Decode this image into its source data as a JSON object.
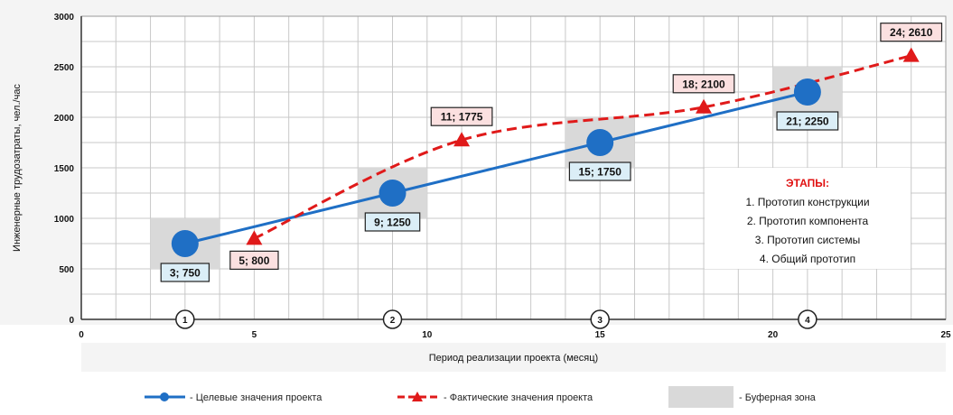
{
  "chart_data": {
    "type": "line",
    "xlabel": "Период реализации проекта (месяц)",
    "ylabel": "Инженерные трудозатраты, чел./час",
    "xlim": [
      0,
      25
    ],
    "ylim": [
      0,
      3000
    ],
    "x_ticks": [
      0,
      5,
      10,
      15,
      20,
      25
    ],
    "y_ticks": [
      0,
      500,
      1000,
      1500,
      2000,
      2500,
      3000
    ],
    "grid": true,
    "series": [
      {
        "name": "- Целевые значения проекта",
        "style": "solid",
        "marker": "circle",
        "color": "#1f6fc5",
        "x": [
          3,
          9,
          15,
          21
        ],
        "y": [
          750,
          1250,
          1750,
          2250
        ],
        "labels": [
          "3; 750",
          "9; 1250",
          "15; 1750",
          "21; 2250"
        ]
      },
      {
        "name": "- Фактические значения проекта",
        "style": "dashed",
        "marker": "triangle",
        "color": "#e01a1a",
        "x": [
          5,
          11,
          18,
          24
        ],
        "y": [
          800,
          1775,
          2100,
          2610
        ],
        "labels": [
          "5; 800",
          "11; 1775",
          "18; 2100",
          "24; 2610"
        ]
      }
    ],
    "buffer_zones": [
      {
        "x": [
          2,
          4
        ],
        "y": [
          500,
          1000
        ]
      },
      {
        "x": [
          8,
          10
        ],
        "y": [
          1000,
          1500
        ]
      },
      {
        "x": [
          14,
          16
        ],
        "y": [
          1500,
          2000
        ]
      },
      {
        "x": [
          20,
          22
        ],
        "y": [
          2000,
          2500
        ]
      }
    ],
    "milestones": [
      {
        "x": 3,
        "label": "1"
      },
      {
        "x": 9,
        "label": "2"
      },
      {
        "x": 15,
        "label": "3"
      },
      {
        "x": 21,
        "label": "4"
      }
    ],
    "legend": {
      "placement": "bottom",
      "buffer_label": "- Буферная зона"
    },
    "stages": {
      "title": "ЭТАПЫ:",
      "items": [
        "1. Прототип конструкции",
        "2. Прототип компонента",
        "3. Прототип системы",
        "4. Общий прототип"
      ]
    },
    "colors": {
      "buffer": "#d9d9d9",
      "target_label_bg": "#dbeef7",
      "actual_label_bg": "#fbe0e0",
      "grid": "#c8c8c8"
    }
  }
}
